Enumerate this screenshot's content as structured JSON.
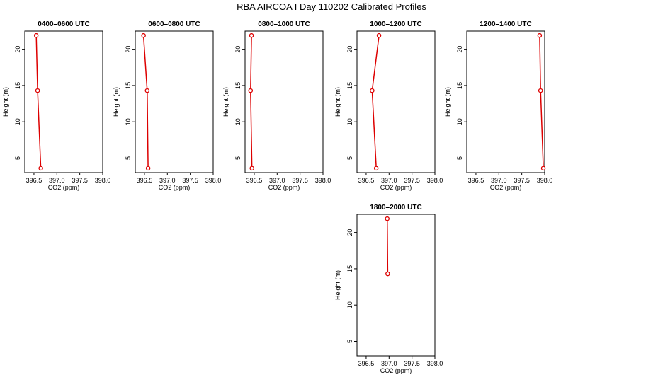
{
  "title": "RBA AIRCOA I  Day 110202  Calibrated Profiles",
  "style": {
    "series_color": "#dd0000"
  },
  "chart_data": [
    {
      "type": "line",
      "title": "0400–0600 UTC",
      "xlabel": "CO2 (ppm)",
      "ylabel": "Height (m)",
      "xlim": [
        396.3,
        398.0
      ],
      "ylim": [
        3,
        22.5
      ],
      "xticks": [
        "396.5",
        "397.0",
        "397.5",
        "398.0"
      ],
      "yticks": [
        "5",
        "10",
        "15",
        "20"
      ],
      "points": [
        {
          "co2": 396.65,
          "height": 3.6
        },
        {
          "co2": 396.58,
          "height": 14.3
        },
        {
          "co2": 396.55,
          "height": 21.9
        }
      ]
    },
    {
      "type": "line",
      "title": "0600–0800 UTC",
      "xlabel": "CO2 (ppm)",
      "ylabel": "Height (m)",
      "xlim": [
        396.3,
        398.0
      ],
      "ylim": [
        3,
        22.5
      ],
      "xticks": [
        "396.5",
        "397.0",
        "397.5",
        "398.0"
      ],
      "yticks": [
        "5",
        "10",
        "15",
        "20"
      ],
      "points": [
        {
          "co2": 396.58,
          "height": 3.6
        },
        {
          "co2": 396.56,
          "height": 14.3
        },
        {
          "co2": 396.48,
          "height": 21.9
        }
      ]
    },
    {
      "type": "line",
      "title": "0800–1000 UTC",
      "xlabel": "CO2 (ppm)",
      "ylabel": "Height (m)",
      "xlim": [
        396.3,
        398.0
      ],
      "ylim": [
        3,
        22.5
      ],
      "xticks": [
        "396.5",
        "397.0",
        "397.5",
        "398.0"
      ],
      "yticks": [
        "5",
        "10",
        "15",
        "20"
      ],
      "points": [
        {
          "co2": 396.45,
          "height": 3.6
        },
        {
          "co2": 396.42,
          "height": 14.3
        },
        {
          "co2": 396.44,
          "height": 21.9
        }
      ]
    },
    {
      "type": "line",
      "title": "1000–1200 UTC",
      "xlabel": "CO2 (ppm)",
      "ylabel": "Height (m)",
      "xlim": [
        396.3,
        398.0
      ],
      "ylim": [
        3,
        22.5
      ],
      "xticks": [
        "396.5",
        "397.0",
        "397.5",
        "398.0"
      ],
      "yticks": [
        "5",
        "10",
        "15",
        "20"
      ],
      "points": [
        {
          "co2": 396.72,
          "height": 3.6
        },
        {
          "co2": 396.63,
          "height": 14.3
        },
        {
          "co2": 396.78,
          "height": 21.9
        }
      ]
    },
    {
      "type": "line",
      "title": "1200–1400 UTC",
      "xlabel": "CO2 (ppm)",
      "ylabel": "Height (m)",
      "xlim": [
        396.3,
        398.0
      ],
      "ylim": [
        3,
        22.5
      ],
      "xticks": [
        "396.5",
        "397.0",
        "397.5",
        "398.0"
      ],
      "yticks": [
        "5",
        "10",
        "15",
        "20"
      ],
      "points": [
        {
          "co2": 397.97,
          "height": 3.6
        },
        {
          "co2": 397.91,
          "height": 14.3
        },
        {
          "co2": 397.89,
          "height": 21.9
        }
      ]
    },
    {
      "type": "line",
      "title": "1800–2000 UTC",
      "xlabel": "CO2 (ppm)",
      "ylabel": "Height (m)",
      "xlim": [
        396.3,
        398.0
      ],
      "ylim": [
        3,
        22.5
      ],
      "xticks": [
        "396.5",
        "397.0",
        "397.5",
        "398.0"
      ],
      "yticks": [
        "5",
        "10",
        "15",
        "20"
      ],
      "points": [
        {
          "co2": 396.97,
          "height": 14.3
        },
        {
          "co2": 396.96,
          "height": 21.9
        }
      ]
    }
  ]
}
